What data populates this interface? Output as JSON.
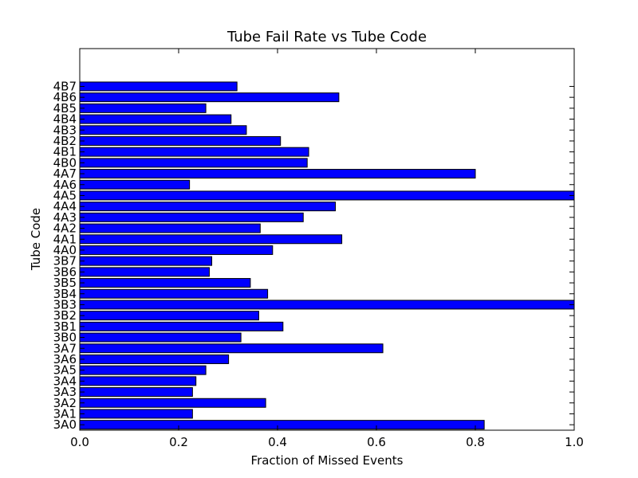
{
  "chart_data": {
    "type": "bar",
    "orientation": "horizontal",
    "title": "Tube Fail Rate vs Tube Code",
    "xlabel": "Fraction of Missed Events",
    "ylabel": "Tube Code",
    "xlim": [
      0.0,
      1.0
    ],
    "xticks": [
      "0.0",
      "0.2",
      "0.4",
      "0.6",
      "0.8",
      "1.0"
    ],
    "grid": false,
    "bar_color": "#0000ff",
    "categories": [
      "3A0",
      "3A1",
      "3A2",
      "3A3",
      "3A4",
      "3A5",
      "3A6",
      "3A7",
      "3B0",
      "3B1",
      "3B2",
      "3B3",
      "3B4",
      "3B5",
      "3B6",
      "3B7",
      "4A0",
      "4A1",
      "4A2",
      "4A3",
      "4A4",
      "4A5",
      "4A6",
      "4A7",
      "4B0",
      "4B1",
      "4B2",
      "4B3",
      "4B4",
      "4B5",
      "4B6",
      "4B7"
    ],
    "values": [
      0.818,
      0.228,
      0.376,
      0.228,
      0.235,
      0.255,
      0.301,
      0.613,
      0.326,
      0.411,
      0.362,
      1.0,
      0.38,
      0.345,
      0.262,
      0.267,
      0.39,
      0.53,
      0.365,
      0.452,
      0.517,
      1.0,
      0.222,
      0.8,
      0.46,
      0.463,
      0.406,
      0.337,
      0.306,
      0.255,
      0.524,
      0.318
    ]
  }
}
